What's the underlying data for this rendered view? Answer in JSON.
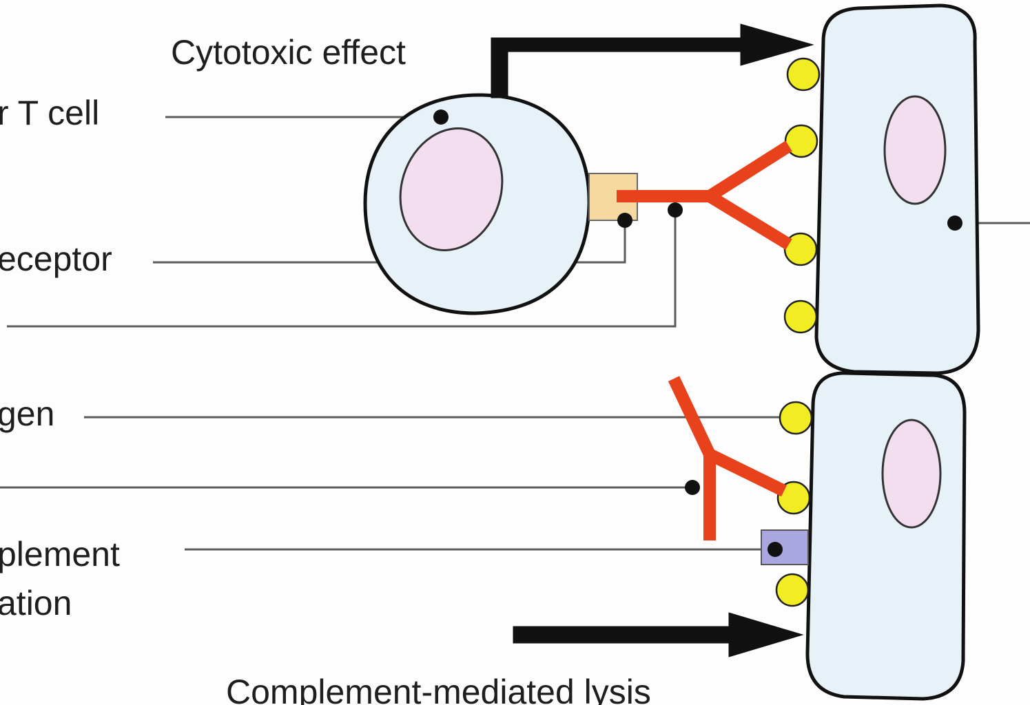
{
  "labels": {
    "cytotoxic_effect": "Cytotoxic effect",
    "killer_t_cell": "r T cell",
    "receptor": "eceptor",
    "antigen": "gen",
    "complement_line1": "plement",
    "complement_line2": "ation",
    "complement_lysis": "Complement-mediated lysis"
  },
  "colors": {
    "antibody": "#e8421c",
    "antigen": "#f2ec22",
    "receptor": "#f6d9a0",
    "complement": "#a9a6e0",
    "nucleus": "#f3def0",
    "cell": "#e6f1f8",
    "outline": "#111111"
  }
}
